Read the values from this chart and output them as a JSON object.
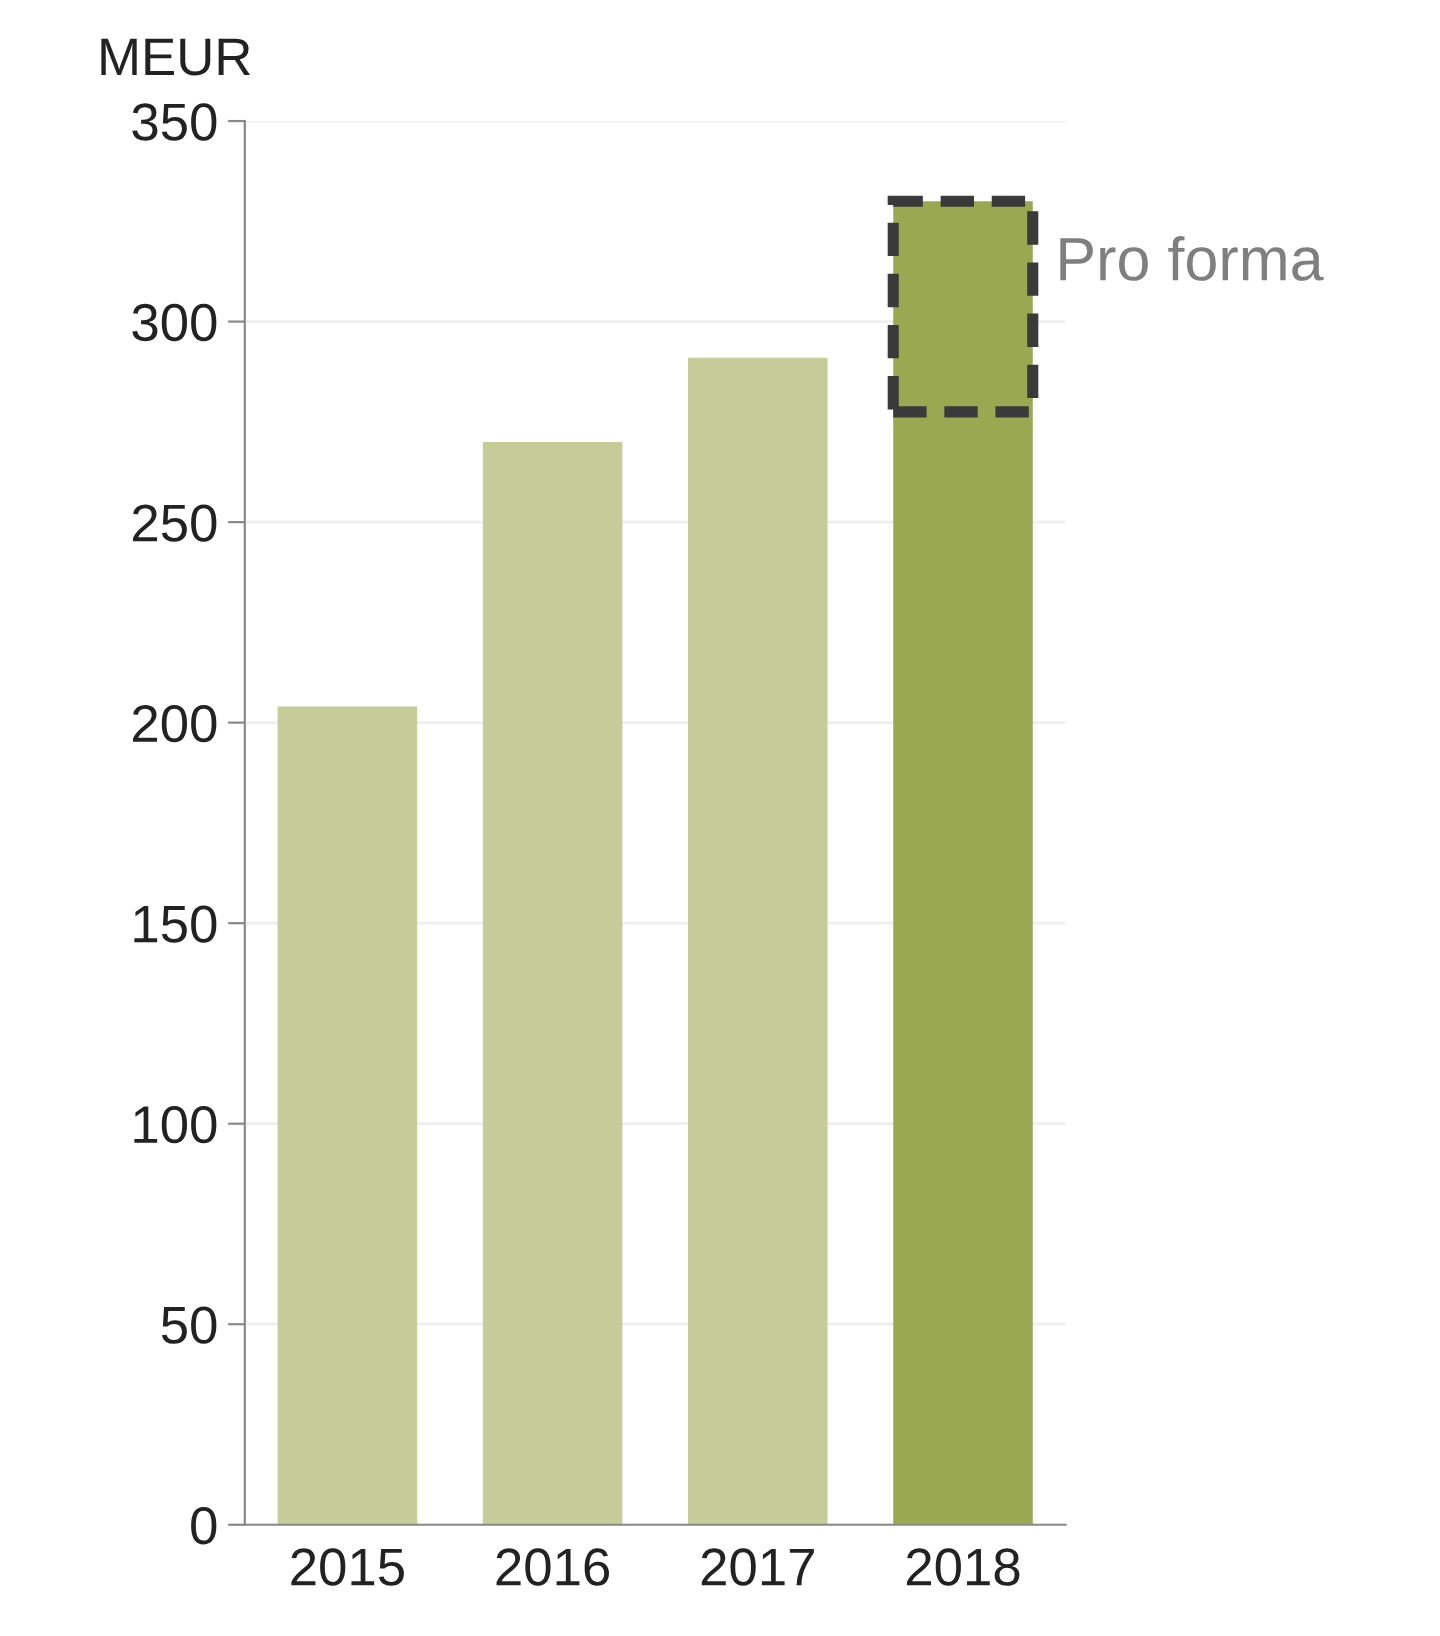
{
  "chart_data": {
    "type": "bar",
    "ylabel": "MEUR",
    "categories": [
      "2015",
      "2016",
      "2017",
      "2018"
    ],
    "values": [
      204,
      270,
      291,
      330
    ],
    "colors": [
      "#c5cc98",
      "#c5cc98",
      "#c5cc98",
      "#9aa851"
    ],
    "ylim": [
      0,
      350
    ],
    "yticks": [
      0,
      50,
      100,
      150,
      200,
      250,
      300,
      350
    ],
    "grid": "y",
    "annotations": [
      {
        "text": "Pro forma",
        "x": "2018",
        "y": 330
      }
    ]
  }
}
